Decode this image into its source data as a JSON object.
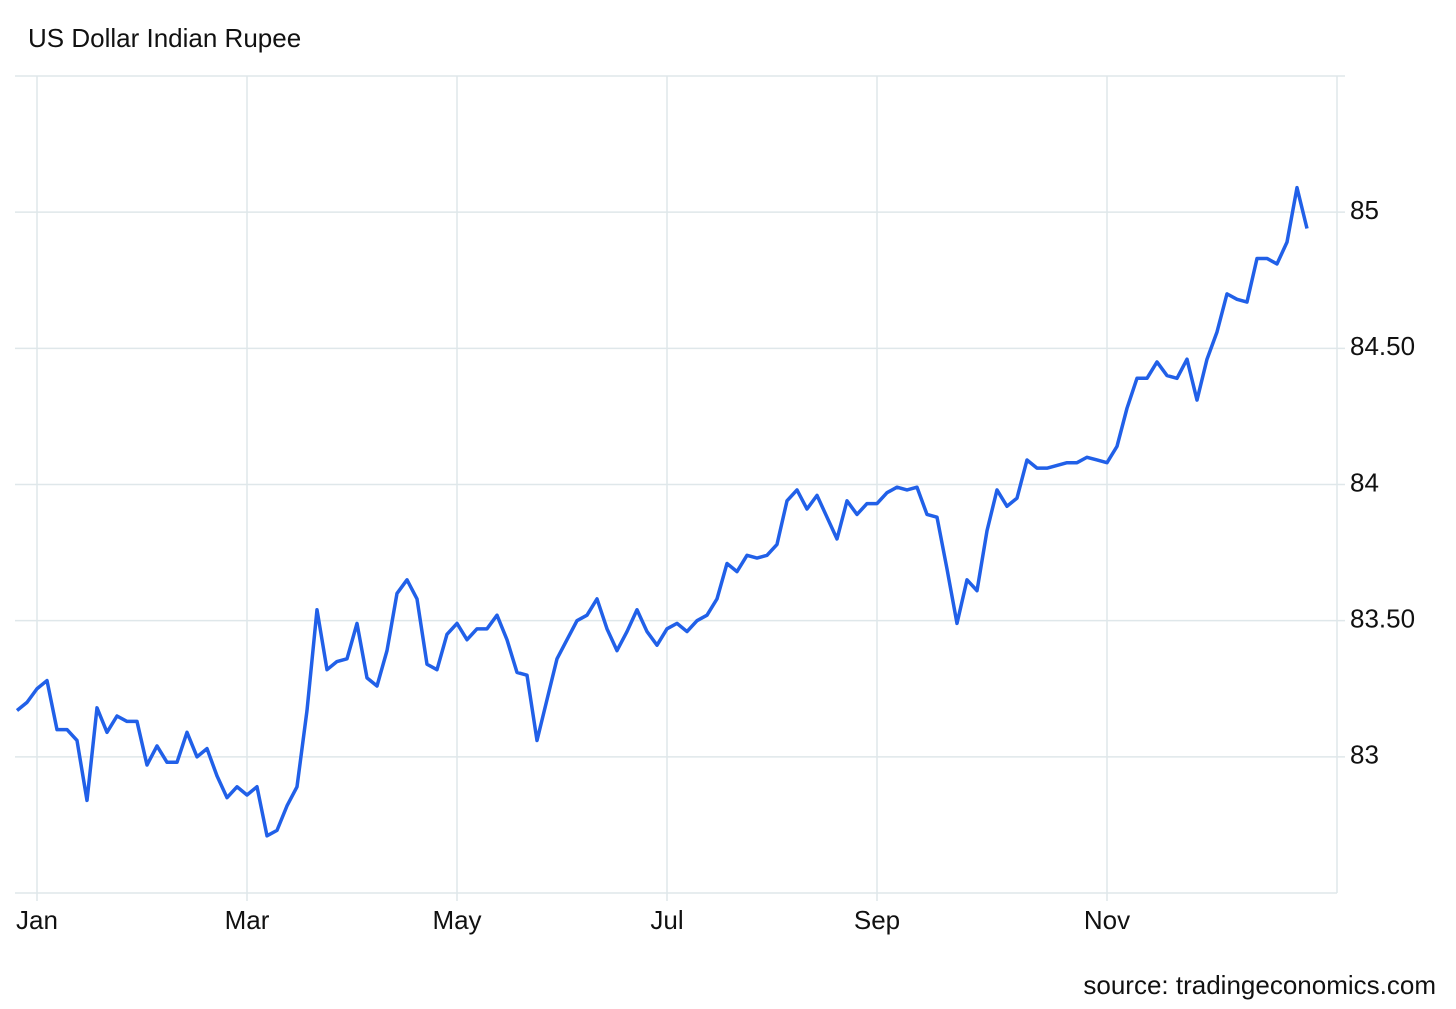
{
  "chart_data": {
    "type": "line",
    "title": "US Dollar Indian Rupee",
    "source": "source: tradingeconomics.com",
    "categories": [
      null,
      null,
      "Jan",
      null,
      null,
      null,
      null,
      null,
      null,
      null,
      null,
      null,
      null,
      null,
      null,
      null,
      null,
      null,
      null,
      null,
      null,
      null,
      null,
      "Mar",
      null,
      null,
      null,
      null,
      null,
      null,
      null,
      null,
      null,
      null,
      null,
      null,
      null,
      null,
      null,
      null,
      null,
      null,
      null,
      null,
      "May",
      null,
      null,
      null,
      null,
      null,
      null,
      null,
      null,
      null,
      null,
      null,
      null,
      null,
      null,
      null,
      null,
      null,
      null,
      null,
      null,
      "Jul",
      null,
      null,
      null,
      null,
      null,
      null,
      null,
      null,
      null,
      null,
      null,
      null,
      null,
      null,
      null,
      null,
      null,
      null,
      null,
      null,
      "Sep",
      null,
      null,
      null,
      null,
      null,
      null,
      null,
      null,
      null,
      null,
      null,
      null,
      null,
      null,
      null,
      null,
      null,
      null,
      null,
      null,
      null,
      null,
      "Nov",
      null,
      null,
      null,
      null,
      null,
      null,
      null,
      null,
      null,
      null,
      null,
      null,
      null,
      null,
      null,
      null,
      null,
      null,
      null,
      null
    ],
    "series": [
      {
        "name": "USDINR",
        "color": "#2160e8",
        "values": [
          83.17,
          83.2,
          83.25,
          83.28,
          83.1,
          83.1,
          83.06,
          82.84,
          83.18,
          83.09,
          83.15,
          83.13,
          83.13,
          82.97,
          83.04,
          82.98,
          82.98,
          83.09,
          83.0,
          83.03,
          82.93,
          82.85,
          82.89,
          82.86,
          82.89,
          82.71,
          82.73,
          82.82,
          82.89,
          83.17,
          83.54,
          83.32,
          83.35,
          83.36,
          83.49,
          83.29,
          83.26,
          83.39,
          83.6,
          83.65,
          83.58,
          83.34,
          83.32,
          83.45,
          83.49,
          83.43,
          83.47,
          83.47,
          83.52,
          83.43,
          83.31,
          83.3,
          83.06,
          83.21,
          83.36,
          83.43,
          83.5,
          83.52,
          83.58,
          83.47,
          83.39,
          83.46,
          83.54,
          83.46,
          83.41,
          83.47,
          83.49,
          83.46,
          83.5,
          83.52,
          83.58,
          83.71,
          83.68,
          83.74,
          83.73,
          83.74,
          83.78,
          83.94,
          83.98,
          83.91,
          83.96,
          83.88,
          83.8,
          83.94,
          83.89,
          83.93,
          83.93,
          83.97,
          83.99,
          83.98,
          83.99,
          83.89,
          83.88,
          83.69,
          83.49,
          83.65,
          83.61,
          83.83,
          83.98,
          83.92,
          83.95,
          84.09,
          84.06,
          84.06,
          84.07,
          84.08,
          84.08,
          84.1,
          84.09,
          84.08,
          84.14,
          84.28,
          84.39,
          84.39,
          84.45,
          84.4,
          84.39,
          84.46,
          84.31,
          84.46,
          84.56,
          84.7,
          84.68,
          84.67,
          84.83,
          84.83,
          84.81,
          84.89,
          85.09,
          84.94
        ]
      }
    ],
    "ylim": [
      82.5,
      85.5
    ],
    "yticks": [
      83,
      {
        "value": 83.5,
        "label": "83.50"
      },
      84,
      {
        "value": 84.5,
        "label": "84.50"
      },
      85
    ],
    "grid": true
  }
}
